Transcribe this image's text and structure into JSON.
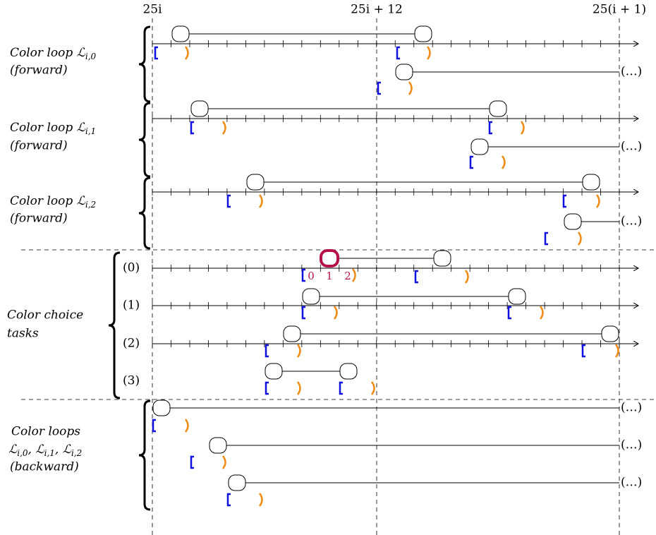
{
  "header": {
    "columns": [
      "25i",
      "25i + 12",
      "25(i + 1)"
    ]
  },
  "groups": [
    {
      "title": "Color loop ℒ",
      "subscript": "i,0",
      "note": "(forward)"
    },
    {
      "title": "Color loop ℒ",
      "subscript": "i,1",
      "note": "(forward)"
    },
    {
      "title": "Color loop ℒ",
      "subscript": "i,2",
      "note": "(forward)"
    }
  ],
  "choice": {
    "title": [
      "Color choice",
      "tasks"
    ],
    "rows": [
      "(0)",
      "(1)",
      "(2)",
      "(3)"
    ],
    "positions": [
      "0",
      "1",
      "2"
    ]
  },
  "backward": {
    "title": "Color loops",
    "loops": [
      {
        "symbol": "ℒ",
        "subscript": "i,0"
      },
      {
        "symbol": "ℒ",
        "subscript": "i,1"
      },
      {
        "symbol": "ℒ",
        "subscript": "i,2"
      }
    ],
    "separator": ", ",
    "note": "(backward)"
  },
  "continuation": [
    "(…)",
    "(…)",
    "(…)",
    "(…)",
    "(…)",
    "(…)"
  ]
}
